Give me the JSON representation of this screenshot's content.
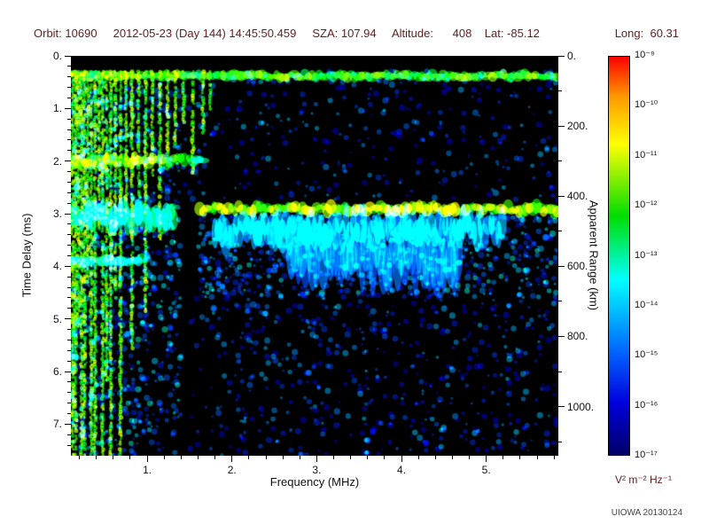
{
  "header": {
    "left": "Orbit: 10690     2012-05-23 (Day 144) 14:45:50.459     SZA: 107.94     Altitude:      408    Lat: -85.12",
    "right": "Long:  60.31"
  },
  "footer": {
    "credit": "UIOWA 20130124"
  },
  "colors": {
    "header_text": "#5e1f1f",
    "axis_text": "#111111",
    "unit_text": "#5e1f1f",
    "credit_text": "#444444",
    "plot_background": "#000000"
  },
  "chart_data": {
    "type": "heatmap",
    "title": "Radar sounder ionogram spectrogram",
    "xlabel": "Frequency (MHz)",
    "ylabel": "Time Delay (ms)",
    "y2label": "Apparent Range (km)",
    "x_range": [
      0.1,
      5.85
    ],
    "y_range": [
      0,
      7.6
    ],
    "y2_per_y": 150,
    "background": "#000000",
    "x_ticks": [
      {
        "v": 1,
        "label": "1."
      },
      {
        "v": 2,
        "label": "2."
      },
      {
        "v": 3,
        "label": "3."
      },
      {
        "v": 4,
        "label": "4."
      },
      {
        "v": 5,
        "label": "5."
      }
    ],
    "y_ticks": [
      {
        "v": 0,
        "label": "0."
      },
      {
        "v": 1,
        "label": "1."
      },
      {
        "v": 2,
        "label": "2."
      },
      {
        "v": 3,
        "label": "3."
      },
      {
        "v": 4,
        "label": "4."
      },
      {
        "v": 5,
        "label": "5."
      },
      {
        "v": 6,
        "label": "6."
      },
      {
        "v": 7,
        "label": "7."
      }
    ],
    "y2_ticks": [
      {
        "v": 0,
        "label": "0."
      },
      {
        "v": 200,
        "label": "200."
      },
      {
        "v": 400,
        "label": "400."
      },
      {
        "v": 600,
        "label": "600."
      },
      {
        "v": 800,
        "label": "800."
      },
      {
        "v": 1000,
        "label": "1000."
      }
    ],
    "colorbar": {
      "labels": [
        "10⁻⁹",
        "10⁻¹⁰",
        "10⁻¹¹",
        "10⁻¹²",
        "10⁻¹³",
        "10⁻¹⁴",
        "10⁻¹⁵",
        "10⁻¹⁶",
        "10⁻¹⁷"
      ],
      "unit": "V² m⁻² Hz⁻¹",
      "stops": [
        [
          "#ff0000",
          0
        ],
        [
          "#ff9900",
          0.1
        ],
        [
          "#ffff00",
          0.22
        ],
        [
          "#00dd00",
          0.4
        ],
        [
          "#00ffff",
          0.56
        ],
        [
          "#0066ff",
          0.74
        ],
        [
          "#0000dd",
          0.87
        ],
        [
          "#000066",
          1
        ]
      ]
    },
    "features": {
      "seed": 42,
      "bands": [
        {
          "x0": 0.1,
          "x1": 5.85,
          "y0": 0.3,
          "y1": 0.46,
          "i": 0.62
        },
        {
          "x0": 0.1,
          "x1": 1.45,
          "y0": 1.88,
          "y1": 2.1,
          "i": 0.66
        },
        {
          "x0": 1.5,
          "x1": 1.7,
          "y0": 1.9,
          "y1": 2.06,
          "i": 0.55
        },
        {
          "x0": 1.62,
          "x1": 5.85,
          "y0": 2.8,
          "y1": 3.02,
          "i": 0.68
        },
        {
          "x0": 1.8,
          "x1": 5.2,
          "y0": 3.0,
          "y1": 3.6,
          "i": 0.34
        },
        {
          "x0": 2.7,
          "x1": 4.7,
          "y0": 3.3,
          "y1": 4.3,
          "i": 0.26
        },
        {
          "x0": 0.1,
          "x1": 1.35,
          "y0": 2.82,
          "y1": 3.3,
          "i": 0.5
        },
        {
          "x0": 0.1,
          "x1": 0.95,
          "y0": 3.8,
          "y1": 3.98,
          "i": 0.5
        }
      ],
      "vlines": [
        [
          0.12,
          7.6
        ],
        [
          0.155,
          7.6
        ],
        [
          0.19,
          5.2
        ],
        [
          0.225,
          7.6
        ],
        [
          0.26,
          7.6
        ],
        [
          0.3,
          4.3
        ],
        [
          0.34,
          7.6
        ],
        [
          0.385,
          7.6
        ],
        [
          0.43,
          3.3
        ],
        [
          0.475,
          7.6
        ],
        [
          0.52,
          6.2
        ],
        [
          0.57,
          7.6
        ],
        [
          0.625,
          4.6
        ],
        [
          0.685,
          7.6
        ],
        [
          0.75,
          3.1
        ],
        [
          0.82,
          5.6
        ],
        [
          0.9,
          2.7
        ],
        [
          0.98,
          4.9
        ],
        [
          1.06,
          2.3
        ],
        [
          1.15,
          3.5
        ],
        [
          1.24,
          2.1
        ],
        [
          1.33,
          1.7
        ],
        [
          1.43,
          1.3
        ],
        [
          1.54,
          2.3
        ],
        [
          1.66,
          1.5
        ],
        [
          1.74,
          1.05
        ]
      ],
      "speckle": [
        {
          "x0": 0.1,
          "x1": 1.4,
          "y0": 0.45,
          "y1": 7.6,
          "n": 900,
          "i0": 0.15,
          "i1": 0.5
        },
        {
          "x0": 1.4,
          "x1": 5.85,
          "y0": 0.5,
          "y1": 2.75,
          "n": 300,
          "i0": 0.12,
          "i1": 0.38
        },
        {
          "x0": 1.6,
          "x1": 5.85,
          "y0": 3.0,
          "y1": 4.6,
          "n": 800,
          "i0": 0.15,
          "i1": 0.48
        },
        {
          "x0": 1.5,
          "x1": 5.85,
          "y0": 4.6,
          "y1": 7.6,
          "n": 550,
          "i0": 0.12,
          "i1": 0.4
        },
        {
          "x0": 2.0,
          "x1": 5.85,
          "y0": 0.28,
          "y1": 0.52,
          "n": 60,
          "i0": 0.18,
          "i1": 0.42
        }
      ]
    }
  }
}
